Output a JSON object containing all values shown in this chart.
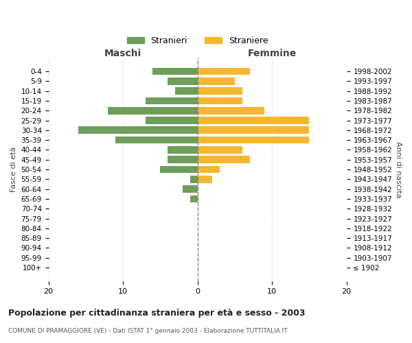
{
  "age_groups": [
    "100+",
    "95-99",
    "90-94",
    "85-89",
    "80-84",
    "75-79",
    "70-74",
    "65-69",
    "60-64",
    "55-59",
    "50-54",
    "45-49",
    "40-44",
    "35-39",
    "30-34",
    "25-29",
    "20-24",
    "15-19",
    "10-14",
    "5-9",
    "0-4"
  ],
  "birth_years": [
    "≤ 1902",
    "1903-1907",
    "1908-1912",
    "1913-1917",
    "1918-1922",
    "1923-1927",
    "1928-1932",
    "1933-1937",
    "1938-1942",
    "1943-1947",
    "1948-1952",
    "1953-1957",
    "1958-1962",
    "1963-1967",
    "1968-1972",
    "1973-1977",
    "1978-1982",
    "1983-1987",
    "1988-1992",
    "1993-1997",
    "1998-2002"
  ],
  "maschi": [
    0,
    0,
    0,
    0,
    0,
    0,
    0,
    1,
    2,
    1,
    5,
    4,
    4,
    11,
    16,
    7,
    12,
    7,
    3,
    4,
    6
  ],
  "femmine": [
    0,
    0,
    0,
    0,
    0,
    0,
    0,
    0,
    0,
    2,
    3,
    7,
    6,
    15,
    15,
    15,
    9,
    6,
    6,
    5,
    7
  ],
  "maschi_color": "#6d9e5a",
  "femmine_color": "#f5b731",
  "background_color": "#ffffff",
  "grid_color": "#cccccc",
  "dashed_line_color": "#888866",
  "title": "Popolazione per cittadinanza straniera per età e sesso - 2003",
  "subtitle": "COMUNE DI PRAMAGGIORE (VE) - Dati ISTAT 1° gennaio 2003 - Elaborazione TUTTITALIA.IT",
  "xlabel_left": "Maschi",
  "xlabel_right": "Femmine",
  "ylabel_left": "Fasce di età",
  "ylabel_right": "Anni di nascita",
  "xlim": 20,
  "legend_stranieri": "Stranieri",
  "legend_straniere": "Straniere"
}
